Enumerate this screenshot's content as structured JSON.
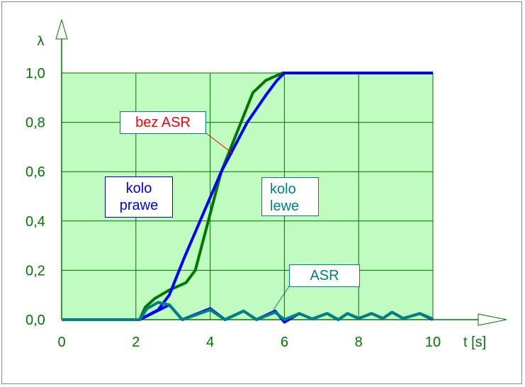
{
  "chart_data": {
    "type": "line",
    "title": "",
    "xlabel": "t [s]",
    "ylabel": "λ",
    "xlim": [
      0,
      10
    ],
    "ylim": [
      0,
      1.0
    ],
    "x_ticks": [
      "0",
      "2",
      "4",
      "6",
      "8",
      "10"
    ],
    "y_ticks": [
      "0,0",
      "0,2",
      "0,4",
      "0,6",
      "0,8",
      "1,0"
    ],
    "grid": true,
    "plot_background": "#c0fcc0",
    "grid_color": "#007000",
    "series": [
      {
        "color": "#007800",
        "x": [
          0,
          2.1,
          2.25,
          2.5,
          2.9,
          3.35,
          3.6,
          4.3,
          5.15,
          5.5,
          5.95,
          10
        ],
        "y": [
          0,
          0,
          0.05,
          0.085,
          0.12,
          0.15,
          0.2,
          0.6,
          0.92,
          0.97,
          1.0,
          1.0
        ]
      },
      {
        "color": "#0000ff",
        "x": [
          0,
          2.1,
          2.6,
          2.9,
          3.3,
          4.3,
          5.0,
          5.5,
          5.8,
          6.0,
          10
        ],
        "y": [
          0,
          0,
          0.04,
          0.1,
          0.25,
          0.6,
          0.8,
          0.91,
          0.97,
          1.0,
          1.0
        ]
      },
      {
        "color": "#0000ff",
        "x": [
          0,
          2.1,
          2.5,
          2.9,
          3.25,
          4.0,
          4.4,
          4.9,
          5.25,
          5.75,
          6.0,
          6.4,
          6.75,
          7.15,
          7.45,
          7.7,
          8.0,
          8.35,
          8.65,
          8.9,
          9.2,
          9.65,
          10
        ],
        "y": [
          0,
          0,
          0.03,
          0.06,
          0.0,
          0.045,
          0.0,
          0.035,
          0.0,
          0.035,
          -0.01,
          0.025,
          0.003,
          0.025,
          0.0,
          0.025,
          0.005,
          0.025,
          0.005,
          0.03,
          0.005,
          0.025,
          0.0
        ]
      },
      {
        "color": "#008080",
        "x": [
          0,
          2.1,
          2.3,
          2.6,
          2.9,
          3.25,
          4.0,
          4.4,
          4.9,
          5.25,
          5.75,
          6.0,
          6.4,
          6.75,
          7.15,
          7.45,
          7.7,
          8.0,
          8.35,
          8.65,
          8.9,
          9.2,
          9.65,
          10
        ],
        "y": [
          0,
          0,
          0.045,
          0.07,
          0.06,
          0.0,
          0.04,
          0.0,
          0.035,
          0.0,
          0.03,
          0.0,
          0.025,
          0.003,
          0.025,
          0.0,
          0.025,
          0.005,
          0.025,
          0.005,
          0.03,
          0.005,
          0.025,
          0.003
        ]
      }
    ],
    "annotations": [
      {
        "text": "bez ASR",
        "color": "#ff0000"
      },
      {
        "text": "kolo prawe",
        "color": "#0000ff"
      },
      {
        "text": "kolo lewe",
        "color": "#008080"
      },
      {
        "text": "ASR",
        "color": "#008080"
      }
    ]
  }
}
